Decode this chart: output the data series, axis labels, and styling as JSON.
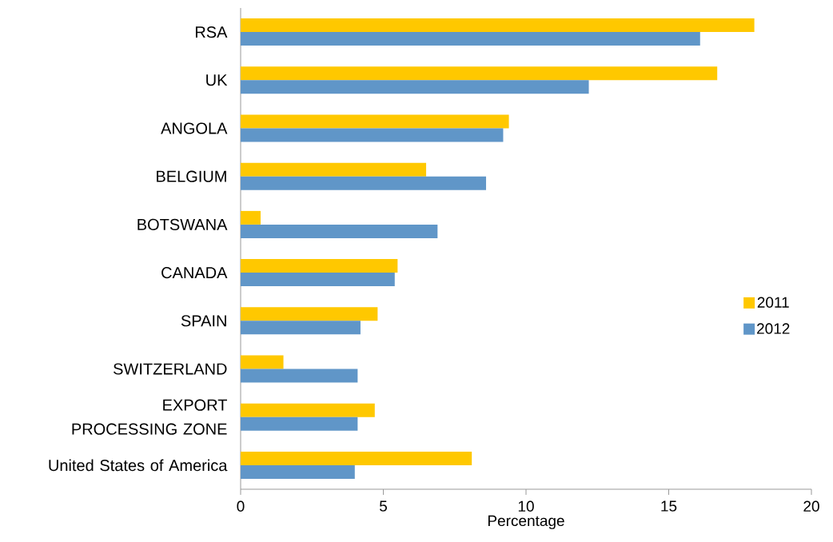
{
  "chart_data": {
    "type": "bar",
    "orientation": "horizontal",
    "xlabel": "Percentage",
    "categories": [
      "RSA",
      "UK",
      "ANGOLA",
      "BELGIUM",
      "BOTSWANA",
      "CANADA",
      "SPAIN",
      "SWITZERLAND",
      "EXPORT PROCESSING ZONE",
      "United States of America"
    ],
    "series": [
      {
        "name": "2011",
        "color": "#ffc800",
        "values": [
          18.0,
          16.7,
          9.4,
          6.5,
          0.7,
          5.5,
          4.8,
          1.5,
          4.7,
          8.1
        ]
      },
      {
        "name": "2012",
        "color": "#6096c8",
        "values": [
          16.1,
          12.2,
          9.2,
          8.6,
          6.9,
          5.4,
          4.2,
          4.1,
          4.1,
          4.0
        ]
      }
    ],
    "xlim": [
      0,
      20
    ],
    "xticks": [
      0,
      5,
      10,
      15,
      20
    ],
    "grid": false,
    "legend": "right"
  }
}
